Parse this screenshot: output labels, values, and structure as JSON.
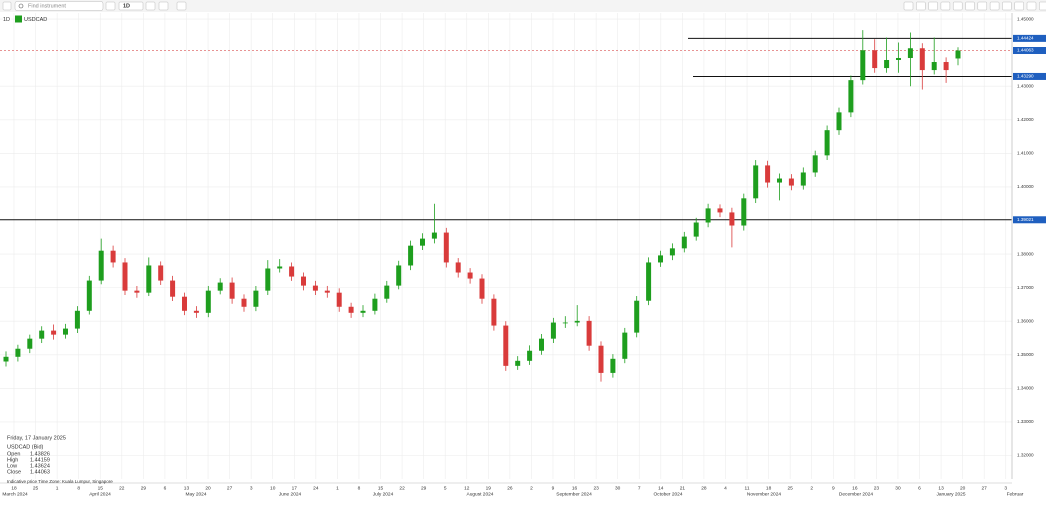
{
  "toolbar": {
    "search": "Find instrument",
    "interval": "1D"
  },
  "chart_header": {
    "interval": "1D",
    "symbol": "USDCAD"
  },
  "info": {
    "date": "Friday, 17 January 2025",
    "instrument": "USDCAD (Bid)",
    "rows": [
      [
        "Open",
        "1.43826"
      ],
      [
        "High",
        "1.44159"
      ],
      [
        "Low",
        "1.43624"
      ],
      [
        "Close",
        "1.44063"
      ]
    ],
    "footer": "Indicative price   Time Zone: Kuala Lumpur, Singapore"
  },
  "chart_data": {
    "type": "candlestick",
    "up_color": "#1e9e1e",
    "down_color": "#d93b3b",
    "ylim": [
      1.313,
      1.4518
    ],
    "yticks": [
      {
        "value": 1.45,
        "label": "1.45000"
      },
      {
        "value": 1.43,
        "label": "1.43000"
      },
      {
        "value": 1.42,
        "label": "1.42000"
      },
      {
        "value": 1.41,
        "label": "1.41000"
      },
      {
        "value": 1.4,
        "label": "1.40000"
      },
      {
        "value": 1.38,
        "label": "1.38000"
      },
      {
        "value": 1.37,
        "label": "1.37000"
      },
      {
        "value": 1.36,
        "label": "1.36000"
      },
      {
        "value": 1.35,
        "label": "1.35000"
      },
      {
        "value": 1.34,
        "label": "1.34000"
      },
      {
        "value": 1.33,
        "label": "1.33000"
      },
      {
        "value": 1.32,
        "label": "1.32000"
      }
    ],
    "grid": true,
    "week_labels": [
      "18",
      "25",
      "1",
      "8",
      "15",
      "22",
      "29",
      "6",
      "13",
      "20",
      "27",
      "3",
      "10",
      "17",
      "24",
      "1",
      "8",
      "15",
      "22",
      "29",
      "5",
      "12",
      "19",
      "26",
      "2",
      "9",
      "16",
      "23",
      "30",
      "7",
      "14",
      "21",
      "28",
      "4",
      "11",
      "18",
      "25",
      "2",
      "9",
      "16",
      "23",
      "30",
      "6",
      "13",
      "20",
      "27",
      "3"
    ],
    "month_labels": [
      "March 2024",
      "April 2024",
      "May 2024",
      "June 2024",
      "July 2024",
      "August 2024",
      "September 2024",
      "October 2024",
      "November 2024",
      "December 2024",
      "January 2025",
      "Februar"
    ],
    "levels": [
      {
        "value": 1.44424,
        "label": "1.44424"
      },
      {
        "value": 1.4329,
        "label": "1.43290"
      },
      {
        "value": 1.39021,
        "label": "1.39021"
      }
    ],
    "last_price": {
      "value": 1.44063,
      "label": "1.44063"
    },
    "candles": [
      [
        1.348,
        1.351,
        1.3465,
        1.3494
      ],
      [
        1.3494,
        1.353,
        1.348,
        1.3518
      ],
      [
        1.3518,
        1.356,
        1.3505,
        1.3548
      ],
      [
        1.3548,
        1.3585,
        1.3535,
        1.3572
      ],
      [
        1.3572,
        1.359,
        1.3545,
        1.356
      ],
      [
        1.356,
        1.3592,
        1.3548,
        1.3578
      ],
      [
        1.3578,
        1.3645,
        1.3565,
        1.3631
      ],
      [
        1.3631,
        1.3735,
        1.362,
        1.3721
      ],
      [
        1.3721,
        1.3846,
        1.371,
        1.381
      ],
      [
        1.381,
        1.3825,
        1.376,
        1.3775
      ],
      [
        1.3775,
        1.3788,
        1.3678,
        1.3691
      ],
      [
        1.3691,
        1.3705,
        1.367,
        1.3685
      ],
      [
        1.3685,
        1.379,
        1.3675,
        1.3766
      ],
      [
        1.3766,
        1.3778,
        1.3708,
        1.3721
      ],
      [
        1.3721,
        1.3735,
        1.366,
        1.3673
      ],
      [
        1.3673,
        1.3685,
        1.3618,
        1.3631
      ],
      [
        1.3631,
        1.3645,
        1.361,
        1.3625
      ],
      [
        1.3625,
        1.3705,
        1.3612,
        1.3691
      ],
      [
        1.3691,
        1.3728,
        1.368,
        1.3715
      ],
      [
        1.3715,
        1.373,
        1.3652,
        1.3667
      ],
      [
        1.3667,
        1.368,
        1.3628,
        1.3643
      ],
      [
        1.3643,
        1.3705,
        1.363,
        1.3691
      ],
      [
        1.3691,
        1.3782,
        1.3678,
        1.3757
      ],
      [
        1.3757,
        1.3785,
        1.3745,
        1.3763
      ],
      [
        1.3763,
        1.3775,
        1.372,
        1.3733
      ],
      [
        1.3733,
        1.3745,
        1.3692,
        1.3706
      ],
      [
        1.3706,
        1.372,
        1.3678,
        1.3691
      ],
      [
        1.3691,
        1.3705,
        1.367,
        1.3685
      ],
      [
        1.3685,
        1.3698,
        1.3628,
        1.3643
      ],
      [
        1.3643,
        1.3655,
        1.361,
        1.3625
      ],
      [
        1.3625,
        1.3648,
        1.3612,
        1.3631
      ],
      [
        1.3631,
        1.3682,
        1.362,
        1.3667
      ],
      [
        1.3667,
        1.372,
        1.3655,
        1.3706
      ],
      [
        1.3706,
        1.378,
        1.3695,
        1.3766
      ],
      [
        1.3766,
        1.384,
        1.3752,
        1.3825
      ],
      [
        1.3825,
        1.3862,
        1.3812,
        1.3846
      ],
      [
        1.3846,
        1.395,
        1.3832,
        1.3864
      ],
      [
        1.3864,
        1.3878,
        1.376,
        1.3775
      ],
      [
        1.3775,
        1.3788,
        1.373,
        1.3745
      ],
      [
        1.3745,
        1.3758,
        1.3712,
        1.3727
      ],
      [
        1.3727,
        1.374,
        1.3652,
        1.3667
      ],
      [
        1.3667,
        1.368,
        1.3572,
        1.3587
      ],
      [
        1.3587,
        1.36,
        1.3452,
        1.3467
      ],
      [
        1.3467,
        1.3496,
        1.3455,
        1.3482
      ],
      [
        1.3482,
        1.3528,
        1.347,
        1.3512
      ],
      [
        1.3512,
        1.3562,
        1.35,
        1.3548
      ],
      [
        1.3548,
        1.361,
        1.3535,
        1.3596
      ],
      [
        1.3596,
        1.3615,
        1.358,
        1.3596
      ],
      [
        1.3596,
        1.3648,
        1.3585,
        1.3601
      ],
      [
        1.3601,
        1.3615,
        1.3512,
        1.3527
      ],
      [
        1.3527,
        1.354,
        1.342,
        1.3446
      ],
      [
        1.3446,
        1.3502,
        1.3432,
        1.3488
      ],
      [
        1.3488,
        1.358,
        1.3475,
        1.3566
      ],
      [
        1.3566,
        1.3675,
        1.3552,
        1.3661
      ],
      [
        1.3661,
        1.379,
        1.3648,
        1.3775
      ],
      [
        1.3775,
        1.381,
        1.3762,
        1.3796
      ],
      [
        1.3796,
        1.3832,
        1.3782,
        1.3817
      ],
      [
        1.3817,
        1.3866,
        1.3805,
        1.3852
      ],
      [
        1.3852,
        1.3908,
        1.384,
        1.3894
      ],
      [
        1.3894,
        1.395,
        1.388,
        1.3936
      ],
      [
        1.3936,
        1.3948,
        1.391,
        1.3924
      ],
      [
        1.3924,
        1.3938,
        1.382,
        1.3885
      ],
      [
        1.3885,
        1.398,
        1.387,
        1.3966
      ],
      [
        1.3966,
        1.408,
        1.3952,
        1.4064
      ],
      [
        1.4064,
        1.4078,
        1.3998,
        1.4013
      ],
      [
        1.4013,
        1.404,
        1.396,
        1.4025
      ],
      [
        1.4025,
        1.4038,
        1.399,
        1.4004
      ],
      [
        1.4004,
        1.4058,
        1.3992,
        1.4043
      ],
      [
        1.4043,
        1.4108,
        1.403,
        1.4094
      ],
      [
        1.4094,
        1.4183,
        1.408,
        1.4169
      ],
      [
        1.4169,
        1.4236,
        1.4155,
        1.4222
      ],
      [
        1.4222,
        1.4332,
        1.4208,
        1.4318
      ],
      [
        1.4318,
        1.4467,
        1.4305,
        1.4407
      ],
      [
        1.4407,
        1.444,
        1.434,
        1.4354
      ],
      [
        1.4354,
        1.4445,
        1.434,
        1.4378
      ],
      [
        1.4378,
        1.443,
        1.434,
        1.4384
      ],
      [
        1.4384,
        1.446,
        1.43,
        1.4413
      ],
      [
        1.4413,
        1.4428,
        1.429,
        1.4348
      ],
      [
        1.4348,
        1.4445,
        1.4335,
        1.4372
      ],
      [
        1.4372,
        1.4386,
        1.431,
        1.4348
      ],
      [
        1.43826,
        1.44159,
        1.43624,
        1.44063
      ]
    ]
  }
}
